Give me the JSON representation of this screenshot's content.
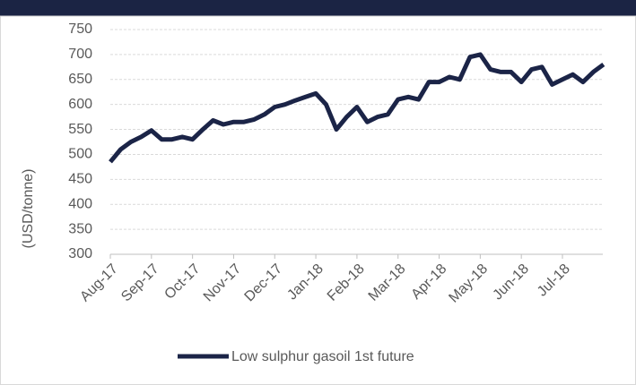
{
  "chart_data": {
    "type": "line",
    "y_label": "(USD/tonne)",
    "categories": [
      "Aug-17",
      null,
      null,
      null,
      "Sep-17",
      null,
      null,
      null,
      "Oct-17",
      null,
      null,
      null,
      "Nov-17",
      null,
      null,
      null,
      "Dec-17",
      null,
      null,
      null,
      "Jan-18",
      null,
      null,
      null,
      "Feb-18",
      null,
      null,
      null,
      "Mar-18",
      null,
      null,
      null,
      "Apr-18",
      null,
      null,
      null,
      "May-18",
      null,
      null,
      null,
      "Jun-18",
      null,
      null,
      null,
      "Jul-18",
      null,
      null,
      null,
      null
    ],
    "series": [
      {
        "name": "Low sulphur gasoil 1st future",
        "color": "#1b2447",
        "values": [
          485,
          510,
          525,
          535,
          548,
          530,
          530,
          535,
          530,
          550,
          568,
          560,
          565,
          565,
          570,
          580,
          595,
          600,
          608,
          615,
          622,
          600,
          550,
          575,
          595,
          565,
          575,
          580,
          610,
          615,
          610,
          645,
          645,
          655,
          650,
          695,
          700,
          670,
          665,
          665,
          645,
          670,
          675,
          640,
          650,
          660,
          645,
          665,
          680
        ]
      }
    ],
    "ylim": [
      300,
      750
    ],
    "yticks": [
      300,
      350,
      400,
      450,
      500,
      550,
      600,
      650,
      700,
      750
    ],
    "grid": true
  }
}
